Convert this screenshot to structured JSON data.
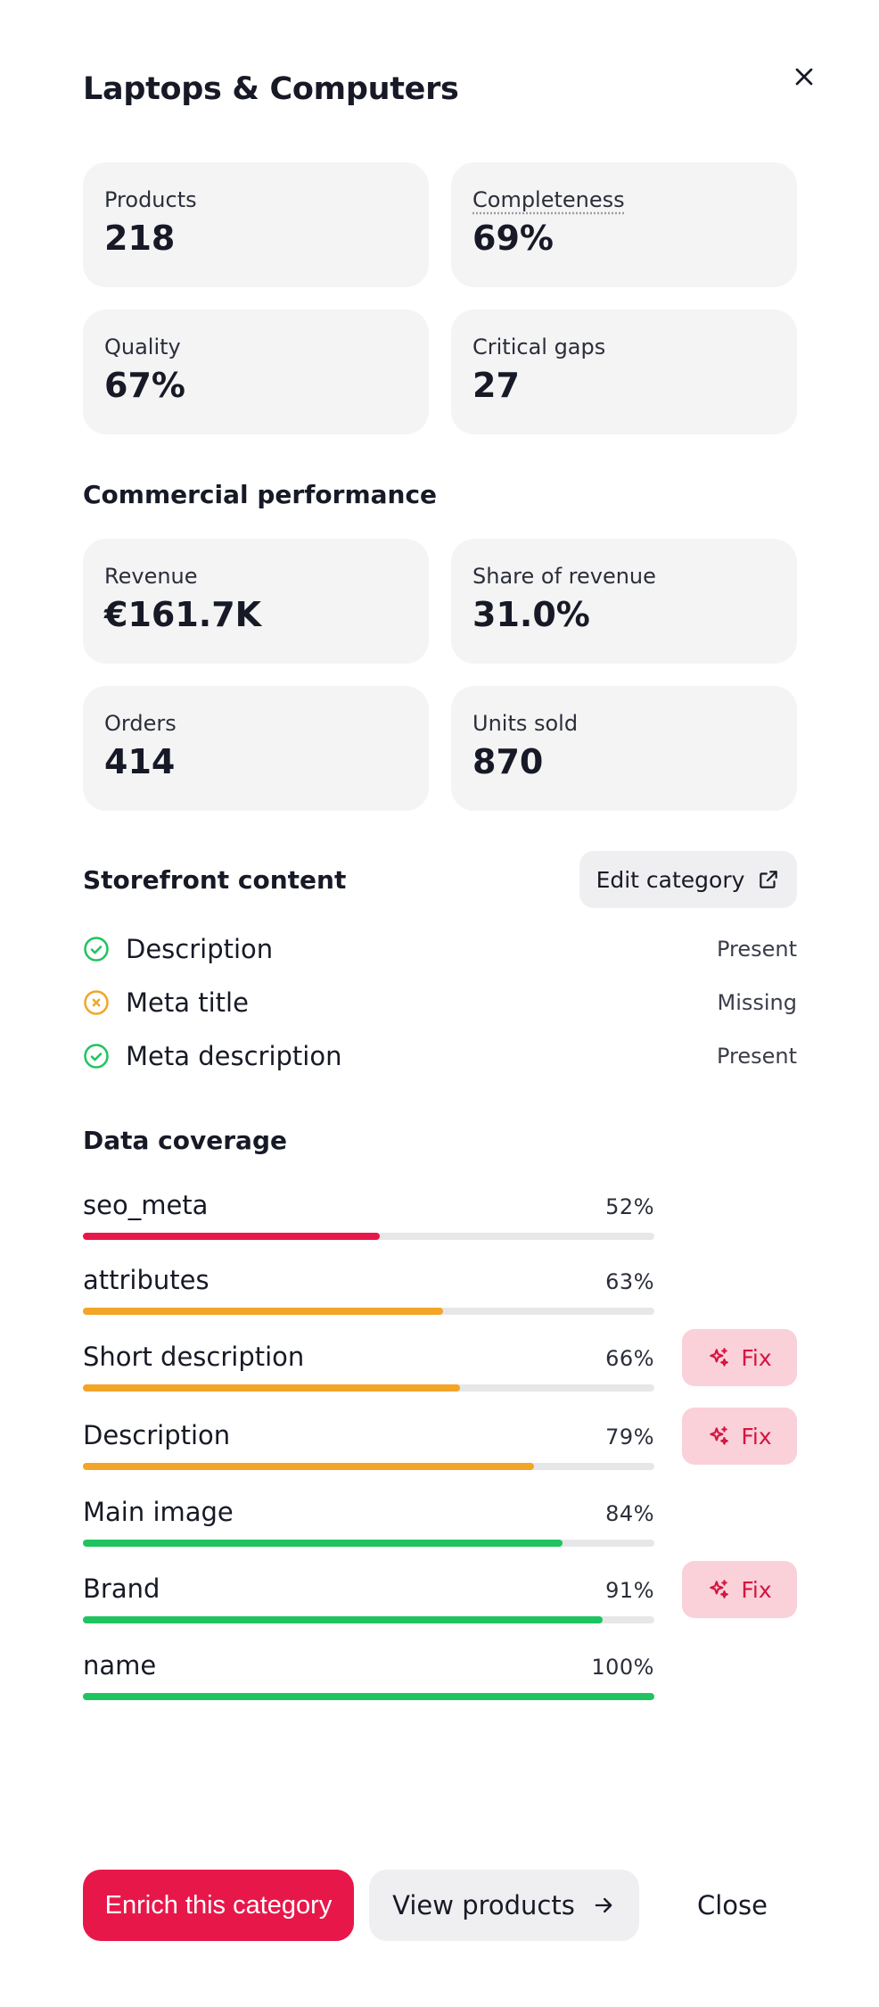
{
  "panel": {
    "title": "Laptops & Computers",
    "close_icon": "close-icon"
  },
  "summary": [
    {
      "label": "Products",
      "value": "218"
    },
    {
      "label": "Completeness",
      "value": "69%"
    },
    {
      "label": "Quality",
      "value": "67%"
    },
    {
      "label": "Critical gaps",
      "value": "27"
    }
  ],
  "commercial": {
    "heading": "Commercial performance",
    "cards": [
      {
        "label": "Revenue",
        "value": "€161.7K"
      },
      {
        "label": "Share of revenue",
        "value": "31.0%"
      },
      {
        "label": "Orders",
        "value": "414"
      },
      {
        "label": "Units sold",
        "value": "870"
      }
    ]
  },
  "storefront": {
    "heading": "Storefront content",
    "edit_label": "Edit category",
    "edit_icon": "external-link-icon",
    "items": [
      {
        "label": "Description",
        "status": "Present",
        "icon": "check-circle-icon"
      },
      {
        "label": "Meta title",
        "status": "Missing",
        "icon": "x-circle-icon"
      },
      {
        "label": "Meta description",
        "status": "Present",
        "icon": "check-circle-icon"
      }
    ]
  },
  "coverage": {
    "heading": "Data coverage",
    "fix_label": "Fix",
    "fix_icon": "sparkles-icon",
    "rows": [
      {
        "name": "seo_meta",
        "pct_label": "52%",
        "fraction": 0.52,
        "color": "#e8174a",
        "fix": false
      },
      {
        "name": "attributes",
        "pct_label": "63%",
        "fraction": 0.63,
        "color": "#f2a526",
        "fix": false
      },
      {
        "name": "Short description",
        "pct_label": "66%",
        "fraction": 0.66,
        "color": "#f2a526",
        "fix": true
      },
      {
        "name": "Description",
        "pct_label": "79%",
        "fraction": 0.79,
        "color": "#f2a526",
        "fix": true
      },
      {
        "name": "Main image",
        "pct_label": "84%",
        "fraction": 0.84,
        "color": "#1fc460",
        "fix": false
      },
      {
        "name": "Brand",
        "pct_label": "91%",
        "fraction": 0.91,
        "color": "#1fc460",
        "fix": true
      },
      {
        "name": "name",
        "pct_label": "100%",
        "fraction": 1.0,
        "color": "#1fc460",
        "fix": false
      }
    ]
  },
  "footer": {
    "enrich_label": "Enrich this category",
    "view_label": "View products",
    "view_icon": "arrow-right-icon",
    "close_label": "Close"
  },
  "colors": {
    "accent": "#e8174a",
    "success": "#1fc460",
    "warning": "#f2a526",
    "fix_bg": "#fad0d9"
  }
}
